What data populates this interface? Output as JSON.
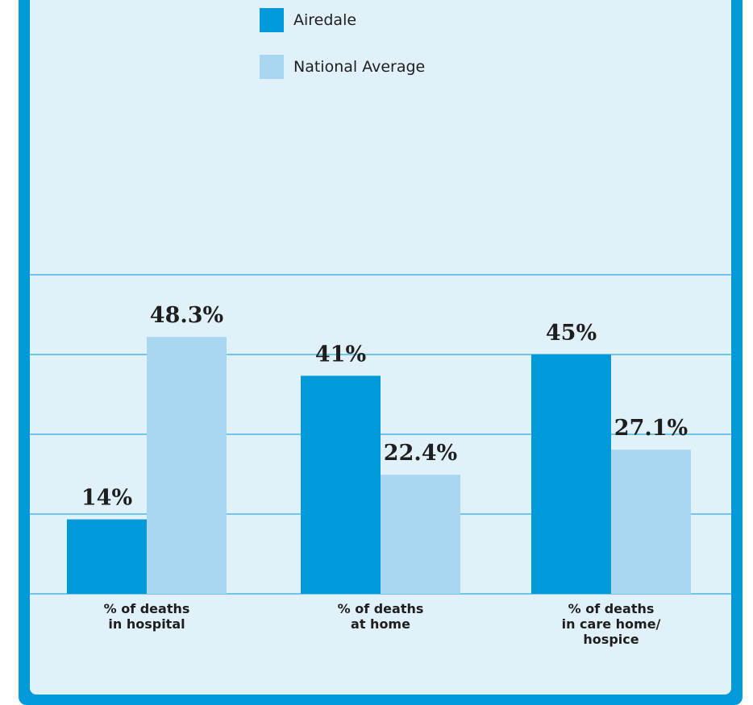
{
  "chart_data": {
    "type": "bar",
    "categories": [
      [
        "% of deaths",
        "in hospital"
      ],
      [
        "% of deaths",
        "at home"
      ],
      [
        "% of deaths",
        "in care home/",
        "hospice"
      ]
    ],
    "series": [
      {
        "name": "Airedale",
        "color": "#0099d9",
        "values": [
          14,
          41,
          45
        ],
        "labels": [
          "14%",
          "41%",
          "45%"
        ]
      },
      {
        "name": "National Average",
        "color": "#a9d6f0",
        "values": [
          48.3,
          22.4,
          27.1
        ],
        "labels": [
          "48.3%",
          "22.4%",
          "27.1%"
        ]
      }
    ],
    "title": "",
    "xlabel": "",
    "ylabel": "",
    "ylim": [
      0,
      60
    ],
    "grid": true,
    "legend_position": "top-center",
    "grid_color": "#0099d9",
    "label_color": "#1e1e1e"
  }
}
